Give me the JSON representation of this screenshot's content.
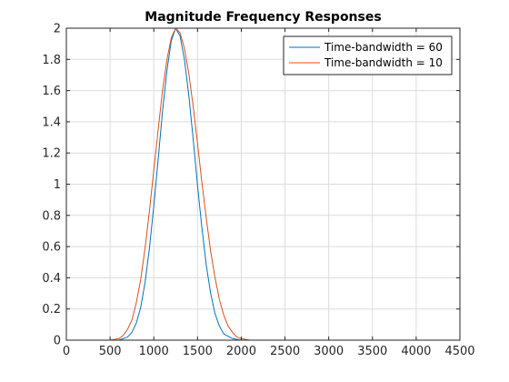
{
  "chart_data": {
    "type": "line",
    "title": "Magnitude Frequency Responses",
    "xlabel": "",
    "ylabel": "",
    "xlim": [
      0,
      4500
    ],
    "ylim": [
      0,
      2
    ],
    "xticks": [
      0,
      500,
      1000,
      1500,
      2000,
      2500,
      3000,
      3500,
      4000,
      4500
    ],
    "yticks": [
      0,
      0.2,
      0.4,
      0.6,
      0.8,
      1,
      1.2,
      1.4,
      1.6,
      1.8,
      2
    ],
    "grid": true,
    "legend_position": "top-right",
    "series": [
      {
        "name": "Time-bandwidth = 60",
        "color": "#0072BD",
        "x": [
          0,
          500,
          600,
          700,
          750,
          800,
          850,
          900,
          950,
          1000,
          1050,
          1100,
          1150,
          1200,
          1250,
          1300,
          1350,
          1400,
          1450,
          1500,
          1550,
          1600,
          1650,
          1700,
          1750,
          1800,
          1900,
          2000,
          4100
        ],
        "y": [
          0,
          0,
          0,
          0.02,
          0.05,
          0.11,
          0.21,
          0.37,
          0.59,
          0.86,
          1.16,
          1.47,
          1.73,
          1.92,
          2.0,
          1.95,
          1.8,
          1.57,
          1.29,
          0.99,
          0.72,
          0.48,
          0.3,
          0.17,
          0.09,
          0.04,
          0.01,
          0,
          0
        ]
      },
      {
        "name": "Time-bandwidth = 10",
        "color": "#D95319",
        "x": [
          0,
          500,
          600,
          650,
          700,
          750,
          800,
          850,
          900,
          950,
          1000,
          1050,
          1100,
          1150,
          1200,
          1250,
          1300,
          1350,
          1400,
          1450,
          1500,
          1550,
          1600,
          1650,
          1700,
          1750,
          1800,
          1850,
          1900,
          1950,
          2000,
          2100,
          4100
        ],
        "y": [
          0,
          0,
          0.01,
          0.03,
          0.07,
          0.13,
          0.24,
          0.39,
          0.59,
          0.83,
          1.09,
          1.35,
          1.6,
          1.8,
          1.94,
          2.0,
          1.97,
          1.87,
          1.71,
          1.5,
          1.26,
          1.01,
          0.78,
          0.57,
          0.4,
          0.26,
          0.16,
          0.09,
          0.05,
          0.02,
          0.01,
          0,
          0
        ]
      }
    ]
  }
}
